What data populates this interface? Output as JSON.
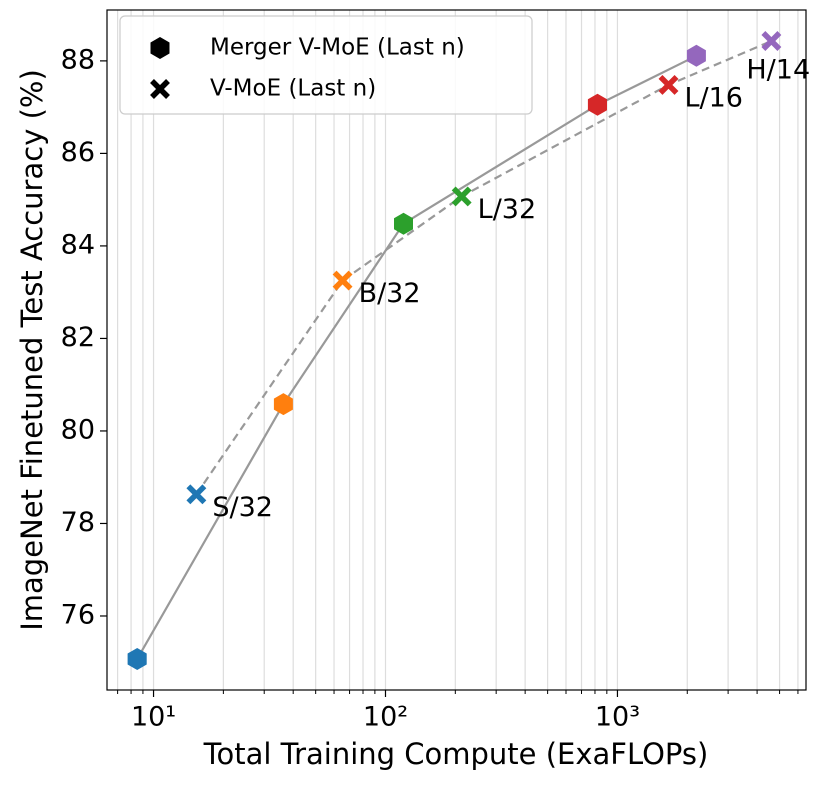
{
  "chart_data": {
    "type": "line",
    "x_label": "Total Training Compute (ExaFLOPs)",
    "y_label": "ImageNet Finetuned Test Accuracy (%)",
    "x_log": true,
    "xlim": [
      6.3,
      6500
    ],
    "ylim": [
      74.4,
      89.1
    ],
    "xticks": [
      {
        "value": 10,
        "label": "10¹"
      },
      {
        "value": 100,
        "label": "10²"
      },
      {
        "value": 1000,
        "label": "10³"
      }
    ],
    "x_minor_ticks": [
      7,
      8,
      9,
      20,
      30,
      40,
      50,
      60,
      70,
      80,
      90,
      200,
      300,
      400,
      500,
      600,
      700,
      800,
      900,
      2000,
      3000,
      4000,
      5000,
      6000
    ],
    "yticks": [
      76,
      78,
      80,
      82,
      84,
      86,
      88
    ],
    "grid": "x",
    "legend": "upper left",
    "line_color": "#999999",
    "series": [
      {
        "name": "Merger V-MoE (Last n)",
        "marker": "hexagon",
        "linestyle": "solid",
        "x": [
          8.5,
          36.3,
          119.6,
          820,
          2190
        ],
        "values": [
          75.07,
          80.58,
          84.48,
          87.05,
          88.11
        ],
        "colors": [
          "#1f77b4",
          "#ff7f0e",
          "#2ca02c",
          "#d62728",
          "#9467bd"
        ]
      },
      {
        "name": "V-MoE (Last n)",
        "marker": "x",
        "linestyle": "dashed",
        "x": [
          15.3,
          65.3,
          213,
          1660,
          4610
        ],
        "values": [
          78.63,
          83.25,
          85.07,
          87.48,
          88.43
        ],
        "colors": [
          "#1f77b4",
          "#ff7f0e",
          "#2ca02c",
          "#d62728",
          "#9467bd"
        ],
        "labels": [
          "S/32",
          "B/32",
          "L/32",
          "L/16",
          "H/14"
        ]
      }
    ]
  }
}
